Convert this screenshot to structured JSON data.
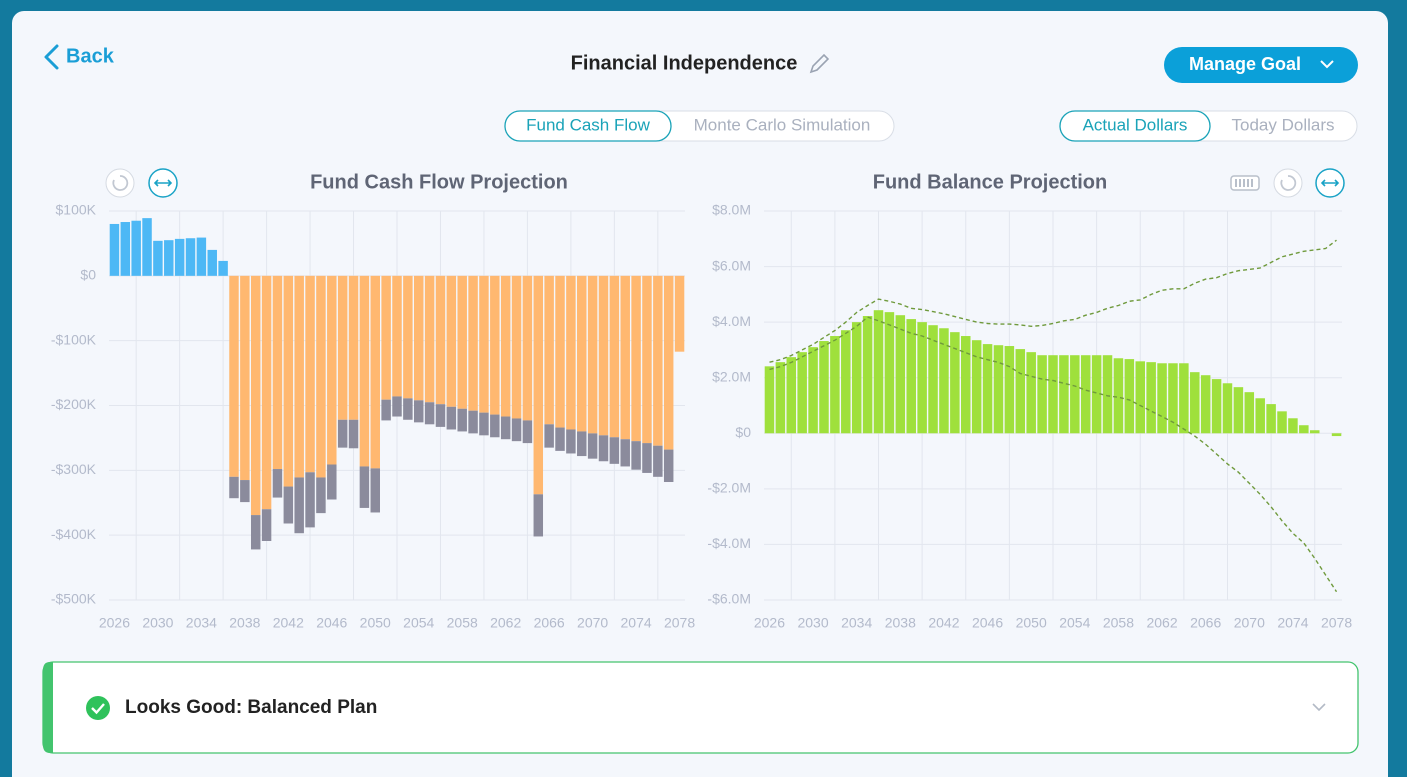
{
  "header": {
    "back": "Back",
    "title": "Financial Independence",
    "button": "Manage Goal"
  },
  "view_tabs": [
    "Fund Cash Flow",
    "Monte Carlo Simulation"
  ],
  "dollar_tabs": [
    "Actual Dollars",
    "Today Dollars"
  ],
  "chart_data": [
    {
      "type": "bar",
      "stacked": true,
      "title": "Fund Cash Flow Projection",
      "grid": true,
      "categories": [
        2026,
        null,
        null,
        null,
        2030,
        null,
        null,
        null,
        2034,
        null,
        null,
        null,
        2038,
        null,
        null,
        null,
        2042,
        null,
        null,
        null,
        2046,
        null,
        null,
        null,
        2050,
        null,
        null,
        null,
        2054,
        null,
        null,
        null,
        2058,
        null,
        null,
        null,
        2062,
        null,
        null,
        null,
        2066,
        null,
        null,
        null,
        2070,
        null,
        null,
        null,
        2074,
        null,
        null,
        null,
        2078
      ],
      "ylim": [
        -500000,
        100000
      ],
      "yticks": [
        {
          "value": 100000,
          "label": "$100K"
        },
        {
          "value": 0,
          "label": "$0"
        },
        {
          "value": -100000,
          "label": "-$100K"
        },
        {
          "value": -200000,
          "label": "-$200K"
        },
        {
          "value": -300000,
          "label": "-$300K"
        },
        {
          "value": -400000,
          "label": "-$400K"
        },
        {
          "value": -500000,
          "label": "-$500K"
        }
      ],
      "series": [
        {
          "color": "#4db8f5",
          "values": [
            80000,
            83000,
            85000,
            89000,
            54000,
            55000,
            57000,
            58000,
            59000,
            40000,
            23000,
            null,
            null,
            null,
            null,
            null,
            null,
            null,
            null,
            null,
            null,
            null,
            null,
            null,
            null,
            null,
            null,
            null,
            null,
            null,
            null,
            null,
            null,
            null,
            null,
            null,
            null,
            null,
            null,
            null,
            null,
            null,
            null,
            null,
            null,
            null,
            null,
            null,
            null,
            null,
            null,
            null,
            null
          ]
        },
        {
          "color": "#ffb870",
          "values": [
            null,
            null,
            null,
            null,
            null,
            null,
            null,
            null,
            null,
            null,
            null,
            -310000,
            -315000,
            -369000,
            -360000,
            -298000,
            -325000,
            -311000,
            -303000,
            -311000,
            -291000,
            -222000,
            -222000,
            -294000,
            -297000,
            -191000,
            -186000,
            -189000,
            -192000,
            -195000,
            -198000,
            -202000,
            -205000,
            -208000,
            -211000,
            -214000,
            -217000,
            -220000,
            -223000,
            -337000,
            -229000,
            -234000,
            -237000,
            -240000,
            -243000,
            -246000,
            -249000,
            -252000,
            -255000,
            -258000,
            -262000,
            -268000,
            -117000
          ]
        },
        {
          "color": "#8b8b9c",
          "values": [
            null,
            null,
            null,
            null,
            null,
            null,
            null,
            null,
            null,
            null,
            null,
            -33000,
            -34000,
            -53000,
            -49000,
            -44000,
            -57000,
            -86000,
            -85000,
            -55000,
            -54000,
            -43000,
            -44000,
            -64000,
            -68000,
            -32000,
            -31000,
            -33000,
            -34000,
            -34000,
            -35000,
            -35000,
            -35000,
            -35000,
            -35000,
            -35000,
            -35000,
            -35000,
            -35000,
            -65000,
            -36000,
            -36000,
            -37000,
            -38000,
            -39000,
            -40000,
            -41000,
            -42000,
            -44000,
            -46000,
            -48000,
            -50000,
            null
          ]
        }
      ]
    },
    {
      "type": "bar",
      "title": "Fund Balance Projection",
      "grid": true,
      "categories": [
        2026,
        null,
        null,
        null,
        2030,
        null,
        null,
        null,
        2034,
        null,
        null,
        null,
        2038,
        null,
        null,
        null,
        2042,
        null,
        null,
        null,
        2046,
        null,
        null,
        null,
        2050,
        null,
        null,
        null,
        2054,
        null,
        null,
        null,
        2058,
        null,
        null,
        null,
        2062,
        null,
        null,
        null,
        2066,
        null,
        null,
        null,
        2070,
        null,
        null,
        null,
        2074,
        null,
        null,
        null,
        2078
      ],
      "ylim": [
        -6000000,
        8000000
      ],
      "yticks": [
        {
          "value": 8000000,
          "label": "$8.0M"
        },
        {
          "value": 6000000,
          "label": "$6.0M"
        },
        {
          "value": 4000000,
          "label": "$4.0M"
        },
        {
          "value": 2000000,
          "label": "$2.0M"
        },
        {
          "value": 0,
          "label": "$0"
        },
        {
          "value": -2000000,
          "label": "-$2.0M"
        },
        {
          "value": -4000000,
          "label": "-$4.0M"
        },
        {
          "value": -6000000,
          "label": "-$6.0M"
        }
      ],
      "series": [
        {
          "color": "#9fe03c",
          "values": [
            2410000,
            2560000,
            2740000,
            2920000,
            3100000,
            3320000,
            3500000,
            3710000,
            4000000,
            4220000,
            4430000,
            4360000,
            4250000,
            4110000,
            4000000,
            3890000,
            3780000,
            3640000,
            3500000,
            3350000,
            3210000,
            3170000,
            3140000,
            3030000,
            2920000,
            2810000,
            2810000,
            2810000,
            2810000,
            2810000,
            2810000,
            2810000,
            2700000,
            2670000,
            2590000,
            2560000,
            2520000,
            2520000,
            2520000,
            2200000,
            2090000,
            1950000,
            1800000,
            1660000,
            1480000,
            1260000,
            1050000,
            790000,
            540000,
            290000,
            110000,
            null,
            -100000
          ]
        },
        {
          "type": "line",
          "dashed": true,
          "color": "#6f9a3c",
          "values": [
            2560000,
            2650000,
            2800000,
            3000000,
            3200000,
            3450000,
            3700000,
            4000000,
            4350000,
            4600000,
            4830000,
            4750000,
            4650000,
            4500000,
            4450000,
            4380000,
            4300000,
            4200000,
            4100000,
            4000000,
            3950000,
            3930000,
            3930000,
            3900000,
            3850000,
            3880000,
            3950000,
            4050000,
            4100000,
            4250000,
            4350000,
            4500000,
            4600000,
            4750000,
            4800000,
            5000000,
            5150000,
            5200000,
            5200000,
            5400000,
            5550000,
            5600000,
            5750000,
            5850000,
            5900000,
            5950000,
            6150000,
            6350000,
            6450000,
            6550000,
            6600000,
            6650000,
            6950000
          ]
        },
        {
          "type": "line",
          "dashed": true,
          "color": "#6f9a3c",
          "values": [
            2300000,
            2400000,
            2550000,
            2750000,
            2950000,
            3150000,
            3350000,
            3600000,
            3850000,
            4180000,
            4050000,
            3900000,
            3750000,
            3600000,
            3500000,
            3350000,
            3200000,
            3050000,
            2900000,
            2750000,
            2650000,
            2550000,
            2400000,
            2150000,
            2050000,
            1950000,
            1900000,
            1800000,
            1700000,
            1550000,
            1450000,
            1350000,
            1300000,
            1200000,
            1000000,
            800000,
            600000,
            400000,
            150000,
            -100000,
            -400000,
            -750000,
            -1100000,
            -1400000,
            -1800000,
            -2200000,
            -2650000,
            -3150000,
            -3600000,
            -3950000,
            -4500000,
            -5100000,
            -5700000
          ]
        }
      ]
    }
  ],
  "status": {
    "text": "Looks Good: Balanced Plan"
  }
}
